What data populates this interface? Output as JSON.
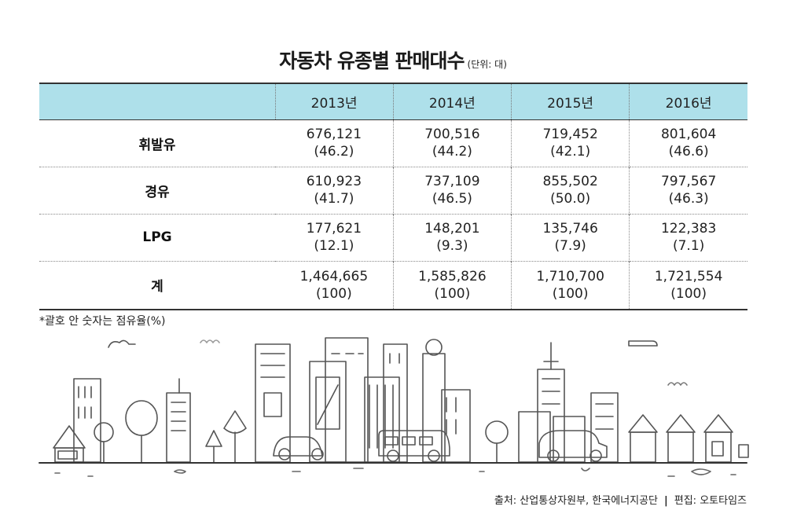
{
  "title": "자동차 유종별 판매대수",
  "unit": "(단위: 대)",
  "table": {
    "header": [
      "",
      "2013년",
      "2014년",
      "2015년",
      "2016년"
    ],
    "rows": [
      {
        "label": "휘발유",
        "cells": [
          {
            "value": "676,121",
            "share": "(46.2)"
          },
          {
            "value": "700,516",
            "share": "(44.2)"
          },
          {
            "value": "719,452",
            "share": "(42.1)"
          },
          {
            "value": "801,604",
            "share": "(46.6)"
          }
        ]
      },
      {
        "label": "경유",
        "cells": [
          {
            "value": "610,923",
            "share": "(41.7)"
          },
          {
            "value": "737,109",
            "share": "(46.5)"
          },
          {
            "value": "855,502",
            "share": "(50.0)"
          },
          {
            "value": "797,567",
            "share": "(46.3)"
          }
        ]
      },
      {
        "label": "LPG",
        "cells": [
          {
            "value": "177,621",
            "share": "(12.1)"
          },
          {
            "value": "148,201",
            "share": "(9.3)"
          },
          {
            "value": "135,746",
            "share": "(7.9)"
          },
          {
            "value": "122,383",
            "share": "(7.1)"
          }
        ]
      },
      {
        "label": "계",
        "cells": [
          {
            "value": "1,464,665",
            "share": "(100)"
          },
          {
            "value": "1,585,826",
            "share": "(100)"
          },
          {
            "value": "1,710,700",
            "share": "(100)"
          },
          {
            "value": "1,721,554",
            "share": "(100)"
          }
        ]
      }
    ]
  },
  "note": "*괄호 안 숫자는 점유율(%)",
  "source": {
    "origin": "출처: 산업통상자원부, 한국에너지공단",
    "separator": "|",
    "editor": "편집: 오토타임즈"
  },
  "colors": {
    "header_bg": "#aee0ea"
  },
  "illustration": "city-skyline-illustration"
}
